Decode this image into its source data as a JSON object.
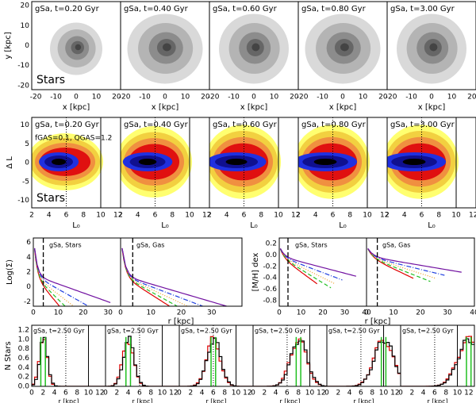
{
  "row1": {
    "titles": [
      "gSa, t=0.20 Gyr",
      "gSa, t=0.40 Gyr",
      "gSa, t=0.60 Gyr",
      "gSa, t=0.80 Gyr",
      "gSa, t=3.00 Gyr"
    ],
    "label": "Stars",
    "ylabel": "y [kpc]",
    "xlabel": "x [kpc]",
    "yticks": [
      "20",
      "10",
      "0",
      "-10",
      "-20"
    ],
    "xticks": [
      "-20",
      "-10",
      "0",
      "10",
      "20"
    ]
  },
  "row2": {
    "titles": [
      "gSa, t=0.20 Gyr",
      "gSa, t=0.40 Gyr",
      "gSa, t=0.60 Gyr",
      "gSa, t=0.80 Gyr",
      "gSa, t=3.00 Gyr"
    ],
    "note": "fGAS=0.1, QGAS=1.2",
    "label": "Stars",
    "ylabel": "Δ L",
    "xlabel": "L₀",
    "yticks": [
      "10",
      "5",
      "0",
      "-5",
      "-10"
    ],
    "xticks": [
      "2",
      "4",
      "6",
      "8",
      "10",
      "12"
    ]
  },
  "row3": {
    "titles": [
      "gSa, Stars",
      "gSa, Gas",
      "gSa, Stars",
      "gSa, Gas"
    ],
    "ylabels": [
      "Log(Σ)",
      "[M/H] dex"
    ],
    "xlabel": "r [kpc]",
    "yticks_sigma": [
      "6",
      "4",
      "2",
      "0",
      "-2"
    ],
    "yticks_mh": [
      "0.2",
      "0.0",
      "-0.2",
      "-0.4",
      "-0.6",
      "-0.8"
    ],
    "xticks": [
      [
        "0",
        "10",
        "20",
        "30"
      ],
      [
        "0",
        "10",
        "20",
        "30"
      ],
      [
        "0",
        "10",
        "20",
        "30",
        "40"
      ],
      [
        "0",
        "10",
        "20",
        "30",
        "40"
      ]
    ]
  },
  "row4": {
    "titles": [
      "gSa, t=2.50 Gyr",
      "gSa, t=2.50 Gyr",
      "gSa, t=2.50 Gyr",
      "gSa, t=2.50 Gyr",
      "gSa, t=2.50 Gyr",
      "gSa, t=2.50 Gyr"
    ],
    "ylabel": "N Stars",
    "xlabel": "r [kpc]",
    "yticks": [
      "1.2",
      "1.0",
      "0.8",
      "0.6",
      "0.4",
      "0.2",
      "0.0"
    ],
    "xticks": [
      "0",
      "2",
      "4",
      "6",
      "8",
      "10",
      "12"
    ]
  }
}
